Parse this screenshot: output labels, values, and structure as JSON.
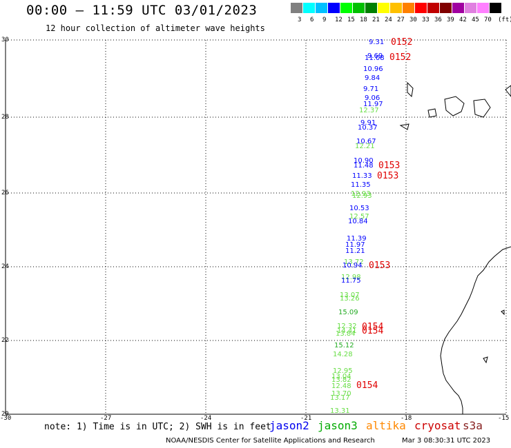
{
  "header": {
    "title": "00:00 – 11:59 UTC 03/01/2023",
    "subtitle": "12 hour collection of altimeter wave heights"
  },
  "legend": {
    "unit": "(ft)",
    "bins": [
      {
        "label": "3",
        "color": "#808080"
      },
      {
        "label": "6",
        "color": "#00ffff"
      },
      {
        "label": "9",
        "color": "#00c0ff"
      },
      {
        "label": "12",
        "color": "#0000ff"
      },
      {
        "label": "15",
        "color": "#00ff00"
      },
      {
        "label": "18",
        "color": "#00c000"
      },
      {
        "label": "21",
        "color": "#008000"
      },
      {
        "label": "24",
        "color": "#ffff00"
      },
      {
        "label": "27",
        "color": "#ffc000"
      },
      {
        "label": "30",
        "color": "#ff8000"
      },
      {
        "label": "33",
        "color": "#ff0000"
      },
      {
        "label": "36",
        "color": "#c00000"
      },
      {
        "label": "39",
        "color": "#800000"
      },
      {
        "label": "42",
        "color": "#a000a0"
      },
      {
        "label": "45",
        "color": "#e080e0"
      },
      {
        "label": "70",
        "color": "#ff80ff"
      },
      {
        "label": "",
        "color": "#000000"
      }
    ]
  },
  "map": {
    "lat_labels": [
      "30",
      "28",
      "26",
      "24",
      "22",
      "20"
    ],
    "lon_labels": [
      "-30",
      "-27",
      "-24",
      "-21",
      "-18",
      "-15"
    ],
    "observations": [
      {
        "v": "9.31",
        "c": "#0000ff"
      },
      {
        "v": "9.69",
        "c": "#0000ff"
      },
      {
        "v": "11.08",
        "c": "#0000ff"
      },
      {
        "v": "10.96",
        "c": "#0000ff"
      },
      {
        "v": "9.84",
        "c": "#0000ff"
      },
      {
        "v": "9.71",
        "c": "#0000ff"
      },
      {
        "v": "9.06",
        "c": "#0000ff"
      },
      {
        "v": "11.97",
        "c": "#0000ff"
      },
      {
        "v": "12.37",
        "c": "#66dd44"
      },
      {
        "v": "9.91",
        "c": "#0000ff"
      },
      {
        "v": "10.37",
        "c": "#0000ff"
      },
      {
        "v": "10.67",
        "c": "#0000ff"
      },
      {
        "v": "12.21",
        "c": "#66dd44"
      },
      {
        "v": "10.90",
        "c": "#0000ff"
      },
      {
        "v": "11.48",
        "c": "#0000ff"
      },
      {
        "v": "11.33",
        "c": "#0000ff"
      },
      {
        "v": "11.35",
        "c": "#0000ff"
      },
      {
        "v": "12.93",
        "c": "#66dd44"
      },
      {
        "v": "12.93",
        "c": "#66dd44"
      },
      {
        "v": "10.53",
        "c": "#0000ff"
      },
      {
        "v": "12.57",
        "c": "#66dd44"
      },
      {
        "v": "10.84",
        "c": "#0000ff"
      },
      {
        "v": "11.39",
        "c": "#0000ff"
      },
      {
        "v": "11.97",
        "c": "#0000ff"
      },
      {
        "v": "11.21",
        "c": "#0000ff"
      },
      {
        "v": "13.72",
        "c": "#66dd44"
      },
      {
        "v": "10.94",
        "c": "#0000ff"
      },
      {
        "v": "12.98",
        "c": "#66dd44"
      },
      {
        "v": "11.75",
        "c": "#0000ff"
      },
      {
        "v": "13.07",
        "c": "#66dd44"
      },
      {
        "v": "13.26",
        "c": "#66dd44"
      },
      {
        "v": "15.09",
        "c": "#22aa22"
      },
      {
        "v": "12.32",
        "c": "#66dd44"
      },
      {
        "v": "14.41",
        "c": "#66dd44"
      },
      {
        "v": "13.84",
        "c": "#66dd44"
      },
      {
        "v": "15.12",
        "c": "#22aa22"
      },
      {
        "v": "14.28",
        "c": "#66dd44"
      },
      {
        "v": "12.95",
        "c": "#66dd44"
      },
      {
        "v": "13.04",
        "c": "#66dd44"
      },
      {
        "v": "13.82",
        "c": "#66dd44"
      },
      {
        "v": "12.48",
        "c": "#66dd44"
      },
      {
        "v": "13.70",
        "c": "#66dd44"
      },
      {
        "v": "13.17",
        "c": "#66dd44"
      },
      {
        "v": "13.31",
        "c": "#66dd44"
      }
    ],
    "pass_labels": [
      "0152",
      "0152",
      "0153",
      "0153",
      "0153",
      "0154",
      "0154",
      "0154"
    ]
  },
  "footer": {
    "note": "note: 1) Time is in UTC; 2) SWH is in feet",
    "satellites": [
      {
        "name": "jason2",
        "color": "#0000ee"
      },
      {
        "name": "jason3",
        "color": "#00aa00"
      },
      {
        "name": "altika",
        "color": "#ff8800"
      },
      {
        "name": "cryosat",
        "color": "#cc0000"
      },
      {
        "name": "s3a",
        "color": "#882222"
      }
    ],
    "credit": "NOAA/NESDIS Center for Satellite Applications and Research",
    "timestamp": "Mar  3 08:30:31 UTC 2023"
  }
}
